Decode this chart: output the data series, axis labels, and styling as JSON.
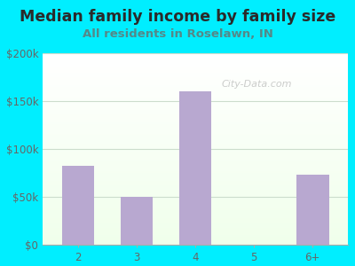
{
  "title": "Median family income by family size",
  "subtitle": "All residents in Roselawn, IN",
  "categories": [
    "2",
    "3",
    "4",
    "5",
    "6+"
  ],
  "values": [
    82000,
    50000,
    160000,
    0,
    73000
  ],
  "bar_color": "#b8a8d0",
  "ylim": [
    0,
    200000
  ],
  "yticks": [
    0,
    50000,
    100000,
    150000,
    200000
  ],
  "ytick_labels": [
    "$0",
    "$50k",
    "$100k",
    "$150k",
    "$200k"
  ],
  "title_fontsize": 12.5,
  "subtitle_fontsize": 9.5,
  "tick_fontsize": 8.5,
  "bg_outer": "#00eeff",
  "title_color": "#2a2a2a",
  "subtitle_color": "#558888",
  "tick_color": "#666666",
  "watermark": "City-Data.com",
  "grid_color": "#ccddcc"
}
